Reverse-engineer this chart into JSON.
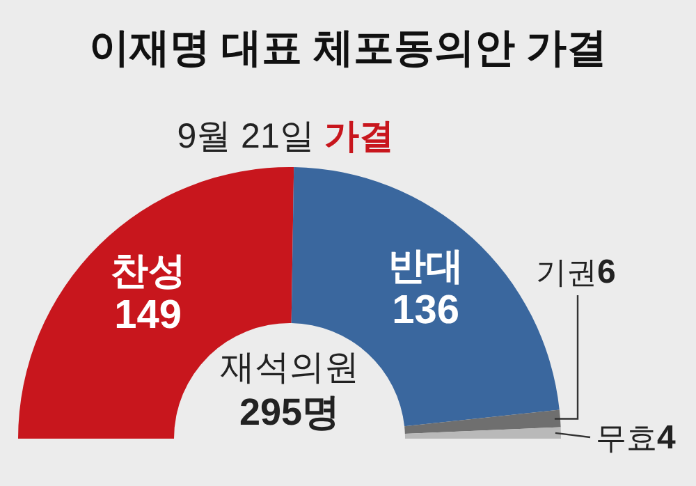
{
  "chart_data": {
    "type": "donut",
    "title": "이재명 대표 체포동의안 가결",
    "subtitle": "9월 21일 가결",
    "categories": [
      "찬성",
      "반대",
      "기권",
      "무효"
    ],
    "values": [
      149,
      136,
      6,
      4
    ],
    "colors": [
      "#c8161d",
      "#3a679e",
      "#6f6f6f",
      "#b9b9b9"
    ],
    "data_labels": true,
    "annotations": [
      "재석의원 295명"
    ]
  }
}
